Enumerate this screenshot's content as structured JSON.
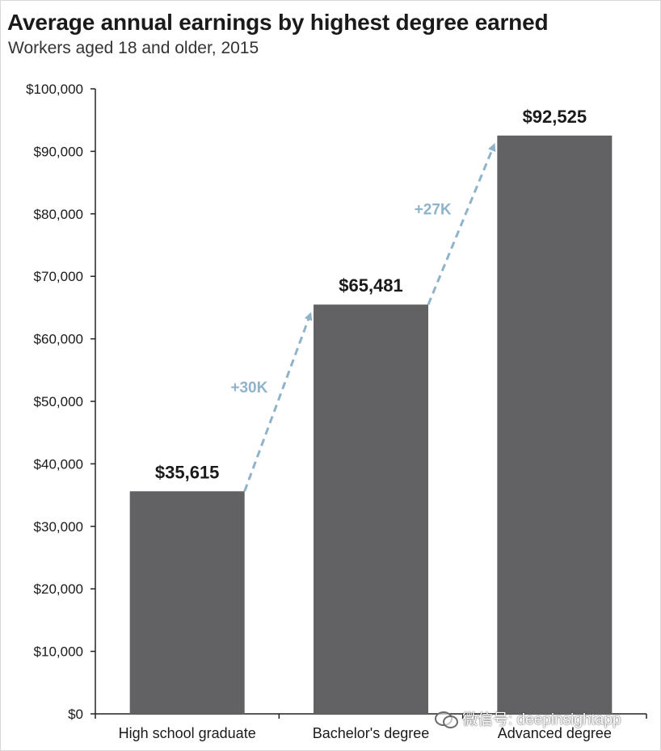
{
  "chart_data": {
    "type": "bar",
    "title": "Average annual earnings by highest degree earned",
    "subtitle": "Workers aged 18 and older, 2015",
    "xlabel": "",
    "ylabel": "",
    "categories": [
      "High school graduate",
      "Bachelor's degree",
      "Advanced degree"
    ],
    "values": [
      35615,
      65481,
      92525
    ],
    "value_labels": [
      "$35,615",
      "$65,481",
      "$92,525"
    ],
    "ylim": [
      0,
      100000
    ],
    "y_ticks": [
      0,
      10000,
      20000,
      30000,
      40000,
      50000,
      60000,
      70000,
      80000,
      90000,
      100000
    ],
    "y_tick_labels": [
      "$0",
      "$10,000",
      "$20,000",
      "$30,000",
      "$40,000",
      "$50,000",
      "$60,000",
      "$70,000",
      "$80,000",
      "$90,000",
      "$100,000"
    ],
    "grid": false,
    "annotations": [
      {
        "text": "+30K",
        "from": "High school graduate",
        "to": "Bachelor's degree"
      },
      {
        "text": "+27K",
        "from": "Bachelor's degree",
        "to": "Advanced degree"
      }
    ],
    "colors": {
      "bar": "#626164",
      "arrow": "#8fb3c9",
      "annotation_text": "#8fb3c9",
      "axis": "#222222",
      "text": "#1a1a1a"
    }
  },
  "watermark": {
    "text": "微信号: deepinsightapp",
    "icon": "wechat-icon"
  }
}
